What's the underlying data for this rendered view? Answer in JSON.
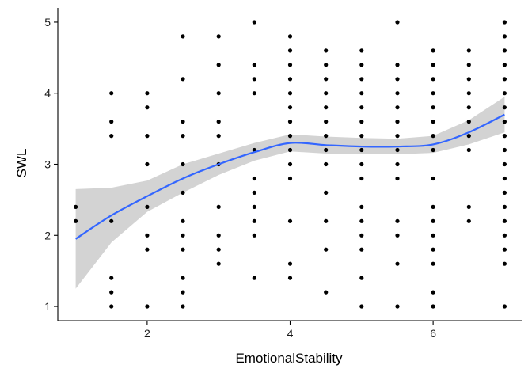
{
  "chart_data": {
    "type": "scatter",
    "title": "",
    "xlabel": "EmotionalStability",
    "ylabel": "SWL",
    "xlim": [
      0.75,
      7.25
    ],
    "ylim": [
      0.8,
      5.2
    ],
    "x_ticks": [
      2,
      4,
      6
    ],
    "y_ticks": [
      1,
      2,
      3,
      4,
      5
    ],
    "grid": false,
    "legend": "none",
    "point_color": "#000000",
    "smooth_color": "#3366FF",
    "band_color": "#D3D3D3",
    "points": [
      [
        1.0,
        2.2
      ],
      [
        1.0,
        2.4
      ],
      [
        1.5,
        1.0
      ],
      [
        1.5,
        1.2
      ],
      [
        1.5,
        1.4
      ],
      [
        1.5,
        2.2
      ],
      [
        1.5,
        3.4
      ],
      [
        1.5,
        3.6
      ],
      [
        1.5,
        4.0
      ],
      [
        2.0,
        1.0
      ],
      [
        2.0,
        1.8
      ],
      [
        2.0,
        2.0
      ],
      [
        2.0,
        2.4
      ],
      [
        2.0,
        3.0
      ],
      [
        2.0,
        3.4
      ],
      [
        2.0,
        3.8
      ],
      [
        2.0,
        4.0
      ],
      [
        2.5,
        1.0
      ],
      [
        2.5,
        1.2
      ],
      [
        2.5,
        1.4
      ],
      [
        2.5,
        1.8
      ],
      [
        2.5,
        2.0
      ],
      [
        2.5,
        2.2
      ],
      [
        2.5,
        2.6
      ],
      [
        2.5,
        3.0
      ],
      [
        2.5,
        3.4
      ],
      [
        2.5,
        3.6
      ],
      [
        2.5,
        4.2
      ],
      [
        2.5,
        4.8
      ],
      [
        3.0,
        1.6
      ],
      [
        3.0,
        1.8
      ],
      [
        3.0,
        2.0
      ],
      [
        3.0,
        2.4
      ],
      [
        3.0,
        3.0
      ],
      [
        3.0,
        3.4
      ],
      [
        3.0,
        3.6
      ],
      [
        3.0,
        4.0
      ],
      [
        3.0,
        4.4
      ],
      [
        3.0,
        4.8
      ],
      [
        3.5,
        1.4
      ],
      [
        3.5,
        2.0
      ],
      [
        3.5,
        2.2
      ],
      [
        3.5,
        2.4
      ],
      [
        3.5,
        2.6
      ],
      [
        3.5,
        2.8
      ],
      [
        3.5,
        3.2
      ],
      [
        3.5,
        4.0
      ],
      [
        3.5,
        4.2
      ],
      [
        3.5,
        4.4
      ],
      [
        3.5,
        5.0
      ],
      [
        4.0,
        1.4
      ],
      [
        4.0,
        1.6
      ],
      [
        4.0,
        2.2
      ],
      [
        4.0,
        2.8
      ],
      [
        4.0,
        3.0
      ],
      [
        4.0,
        3.2
      ],
      [
        4.0,
        3.4
      ],
      [
        4.0,
        3.6
      ],
      [
        4.0,
        3.8
      ],
      [
        4.0,
        4.0
      ],
      [
        4.0,
        4.2
      ],
      [
        4.0,
        4.4
      ],
      [
        4.0,
        4.6
      ],
      [
        4.0,
        4.8
      ],
      [
        4.5,
        1.2
      ],
      [
        4.5,
        1.8
      ],
      [
        4.5,
        2.2
      ],
      [
        4.5,
        2.6
      ],
      [
        4.5,
        3.0
      ],
      [
        4.5,
        3.2
      ],
      [
        4.5,
        3.4
      ],
      [
        4.5,
        3.6
      ],
      [
        4.5,
        3.8
      ],
      [
        4.5,
        4.0
      ],
      [
        4.5,
        4.2
      ],
      [
        4.5,
        4.4
      ],
      [
        4.5,
        4.6
      ],
      [
        5.0,
        1.0
      ],
      [
        5.0,
        1.4
      ],
      [
        5.0,
        1.8
      ],
      [
        5.0,
        2.0
      ],
      [
        5.0,
        2.2
      ],
      [
        5.0,
        2.4
      ],
      [
        5.0,
        2.8
      ],
      [
        5.0,
        3.0
      ],
      [
        5.0,
        3.2
      ],
      [
        5.0,
        3.4
      ],
      [
        5.0,
        3.6
      ],
      [
        5.0,
        3.8
      ],
      [
        5.0,
        4.0
      ],
      [
        5.0,
        4.2
      ],
      [
        5.0,
        4.4
      ],
      [
        5.0,
        4.6
      ],
      [
        5.5,
        1.0
      ],
      [
        5.5,
        1.6
      ],
      [
        5.5,
        2.0
      ],
      [
        5.5,
        2.2
      ],
      [
        5.5,
        2.8
      ],
      [
        5.5,
        3.0
      ],
      [
        5.5,
        3.2
      ],
      [
        5.5,
        3.4
      ],
      [
        5.5,
        3.6
      ],
      [
        5.5,
        3.8
      ],
      [
        5.5,
        4.0
      ],
      [
        5.5,
        4.2
      ],
      [
        5.5,
        4.4
      ],
      [
        5.5,
        5.0
      ],
      [
        6.0,
        1.0
      ],
      [
        6.0,
        1.2
      ],
      [
        6.0,
        1.6
      ],
      [
        6.0,
        1.8
      ],
      [
        6.0,
        2.0
      ],
      [
        6.0,
        2.2
      ],
      [
        6.0,
        2.4
      ],
      [
        6.0,
        2.8
      ],
      [
        6.0,
        3.2
      ],
      [
        6.0,
        3.4
      ],
      [
        6.0,
        3.6
      ],
      [
        6.0,
        3.8
      ],
      [
        6.0,
        4.0
      ],
      [
        6.0,
        4.2
      ],
      [
        6.0,
        4.4
      ],
      [
        6.0,
        4.6
      ],
      [
        6.5,
        2.2
      ],
      [
        6.5,
        2.4
      ],
      [
        6.5,
        3.2
      ],
      [
        6.5,
        3.4
      ],
      [
        6.5,
        3.6
      ],
      [
        6.5,
        3.8
      ],
      [
        6.5,
        4.0
      ],
      [
        6.5,
        4.2
      ],
      [
        6.5,
        4.4
      ],
      [
        6.5,
        4.6
      ],
      [
        7.0,
        1.0
      ],
      [
        7.0,
        1.6
      ],
      [
        7.0,
        1.8
      ],
      [
        7.0,
        2.0
      ],
      [
        7.0,
        2.2
      ],
      [
        7.0,
        2.4
      ],
      [
        7.0,
        2.6
      ],
      [
        7.0,
        2.8
      ],
      [
        7.0,
        3.0
      ],
      [
        7.0,
        3.2
      ],
      [
        7.0,
        3.4
      ],
      [
        7.0,
        3.6
      ],
      [
        7.0,
        3.8
      ],
      [
        7.0,
        4.0
      ],
      [
        7.0,
        4.2
      ],
      [
        7.0,
        4.4
      ],
      [
        7.0,
        4.6
      ],
      [
        7.0,
        4.8
      ],
      [
        7.0,
        5.0
      ]
    ],
    "smooth": {
      "x": [
        1.0,
        1.5,
        2.0,
        2.5,
        3.0,
        3.5,
        4.0,
        4.5,
        5.0,
        5.5,
        6.0,
        6.5,
        7.0
      ],
      "y": [
        1.95,
        2.28,
        2.55,
        2.8,
        3.0,
        3.17,
        3.3,
        3.27,
        3.25,
        3.25,
        3.28,
        3.45,
        3.7
      ],
      "lower": [
        1.25,
        1.9,
        2.33,
        2.6,
        2.85,
        3.05,
        3.18,
        3.15,
        3.14,
        3.14,
        3.16,
        3.28,
        3.45
      ],
      "upper": [
        2.65,
        2.67,
        2.77,
        3.0,
        3.15,
        3.3,
        3.42,
        3.39,
        3.37,
        3.36,
        3.4,
        3.62,
        3.95
      ]
    }
  }
}
